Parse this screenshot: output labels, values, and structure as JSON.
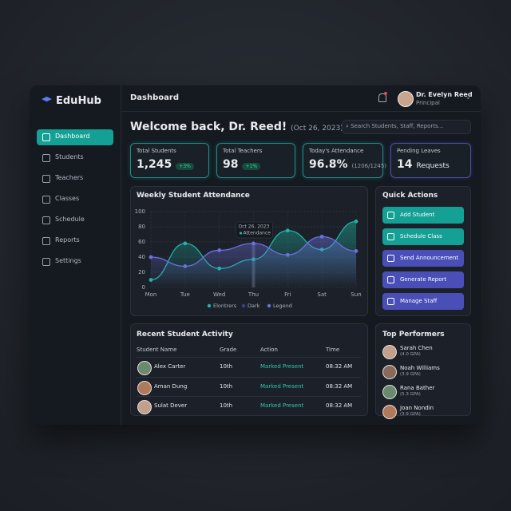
{
  "app": {
    "brand": "EduHub",
    "nav": [
      "Dashboard",
      "Students",
      "Teachers",
      "Classes",
      "Schedule",
      "Reports",
      "Settings"
    ]
  },
  "header": {
    "title": "Dashboard",
    "user_name": "Dr. Evelyn Reed",
    "user_role": "Principal"
  },
  "welcome": {
    "greeting": "Welcome back, Dr. Reed!",
    "date": "(Oct 26, 2023)",
    "search_placeholder": "Search Students, Staff, Reports..."
  },
  "stats": [
    {
      "label": "Total Students",
      "value": "1,245",
      "badge": "+3%"
    },
    {
      "label": "Total Teachers",
      "value": "98",
      "badge": "+1%"
    },
    {
      "label": "Today's Attendance",
      "value": "96.8%",
      "detail": "(1206/1245)"
    },
    {
      "label": "Pending Leaves",
      "value": "14",
      "detail": "Requests"
    }
  ],
  "chart_data": {
    "type": "line",
    "title": "Weekly Student Attendance",
    "categories": [
      "Mon",
      "Tue",
      "Wed",
      "Thu",
      "Fri",
      "Sat",
      "Sun"
    ],
    "series": [
      {
        "name": "Elontrers",
        "color": "#1fb5a5",
        "values": [
          10,
          58,
          25,
          37,
          75,
          50,
          87
        ]
      },
      {
        "name": "Dark",
        "color": "#3b3f9a",
        "values": [
          null,
          null,
          null,
          null,
          null,
          null,
          null
        ]
      },
      {
        "name": "Legend",
        "color": "#6c6fe0",
        "values": [
          40,
          28,
          49,
          58,
          43,
          67,
          48
        ]
      }
    ],
    "ylim": [
      0,
      100
    ],
    "yticks": [
      0,
      20,
      40,
      60,
      80,
      100
    ],
    "grid": true,
    "annotation": {
      "date": "Oct 26, 2023",
      "label": "Attendance"
    }
  },
  "quick_actions": {
    "title": "Quick Actions",
    "buttons": [
      "Add Student",
      "Schedule Class",
      "Send Announcement",
      "Generate Report",
      "Manage Staff"
    ]
  },
  "activity": {
    "title": "Recent Student Activity",
    "columns": [
      "Student Name",
      "Grade",
      "Action",
      "Time"
    ],
    "rows": [
      [
        "Alex Carter",
        "10th",
        "Marked Present",
        "08:32 AM"
      ],
      [
        "Aman Dung",
        "10th",
        "Marked Present",
        "08:32 AM"
      ],
      [
        "Sulat Dever",
        "10th",
        "Marked Present",
        "08:32 AM"
      ]
    ]
  },
  "performers": {
    "title": "Top Performers",
    "items": [
      {
        "name": "Sarah Chen",
        "gpa": "(4.0 GPA)"
      },
      {
        "name": "Noah Williams",
        "gpa": "(3.9 GPA)"
      },
      {
        "name": "Rana Bather",
        "gpa": "(5.3 GPA)"
      },
      {
        "name": "Joan Nondin",
        "gpa": "(3.9 GPA)"
      }
    ]
  }
}
